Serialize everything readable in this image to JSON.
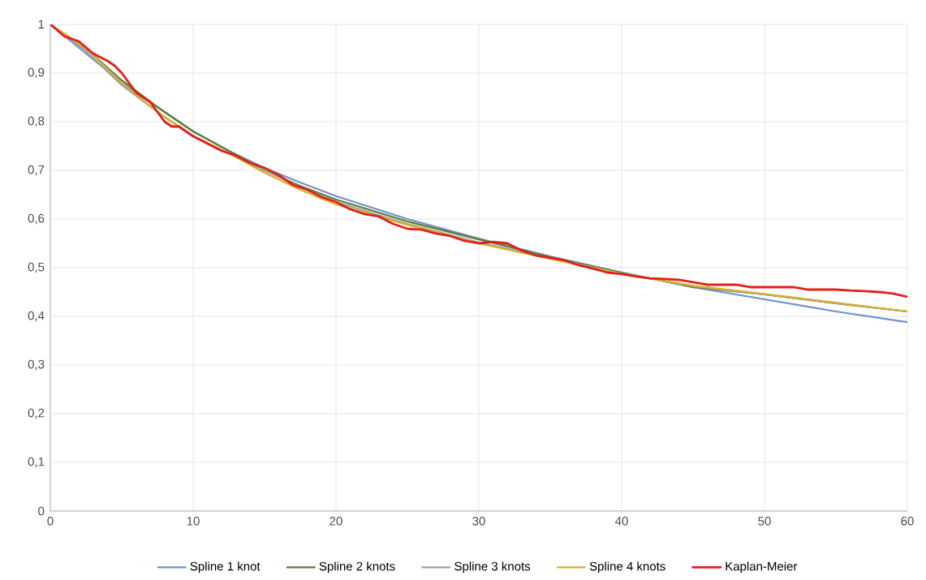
{
  "chart_data": {
    "type": "line",
    "xlim": [
      0,
      60
    ],
    "ylim": [
      0,
      1
    ],
    "xticks": [
      0,
      10,
      20,
      30,
      40,
      50,
      60
    ],
    "yticks": [
      0,
      {
        "value": 0.1,
        "label": "0,1"
      },
      {
        "value": 0.2,
        "label": "0,2"
      },
      {
        "value": 0.3,
        "label": "0,3"
      },
      {
        "value": 0.4,
        "label": "0,4"
      },
      {
        "value": 0.5,
        "label": "0,5"
      },
      {
        "value": 0.6,
        "label": "0,6"
      },
      {
        "value": 0.7,
        "label": "0,7"
      },
      {
        "value": 0.8,
        "label": "0,8"
      },
      {
        "value": 0.9,
        "label": "0,9"
      },
      1
    ],
    "grid": true,
    "legend": "bottom",
    "marker": "none",
    "line_style": "solid",
    "series": [
      {
        "name": "Spline 1 knot",
        "color": "#6f94c9",
        "x": [
          0,
          2.5,
          5,
          7.5,
          10,
          12.5,
          15,
          17.5,
          20,
          25,
          30,
          35,
          40,
          45,
          50,
          55,
          60
        ],
        "values": [
          1,
          0.94,
          0.88,
          0.83,
          0.78,
          0.74,
          0.705,
          0.675,
          0.647,
          0.6,
          0.56,
          0.523,
          0.49,
          0.46,
          0.435,
          0.41,
          0.388
        ]
      },
      {
        "name": "Spline 2 knots",
        "color": "#5e7a3a",
        "x": [
          0,
          2.5,
          5,
          7.5,
          10,
          12.5,
          15,
          17.5,
          20,
          25,
          30,
          35,
          40,
          45,
          50,
          55,
          60
        ],
        "values": [
          1,
          0.95,
          0.885,
          0.83,
          0.78,
          0.74,
          0.7,
          0.668,
          0.64,
          0.595,
          0.558,
          0.522,
          0.49,
          0.46,
          0.445,
          0.427,
          0.41
        ]
      },
      {
        "name": "Spline 3 knots",
        "color": "#a0a0a0",
        "x": [
          0,
          2.5,
          5,
          7.5,
          10,
          12.5,
          15,
          17.5,
          20,
          25,
          30,
          35,
          40,
          45,
          50,
          55,
          60
        ],
        "values": [
          1,
          0.945,
          0.875,
          0.82,
          0.77,
          0.735,
          0.7,
          0.665,
          0.635,
          0.59,
          0.552,
          0.52,
          0.488,
          0.462,
          0.445,
          0.427,
          0.41
        ]
      },
      {
        "name": "Spline 4 knots",
        "color": "#d9b02a",
        "x": [
          0,
          2.5,
          5,
          7.5,
          10,
          12.5,
          15,
          17.5,
          20,
          25,
          30,
          35,
          40,
          45,
          50,
          55,
          60
        ],
        "values": [
          1,
          0.95,
          0.88,
          0.82,
          0.77,
          0.735,
          0.695,
          0.66,
          0.63,
          0.588,
          0.55,
          0.518,
          0.487,
          0.463,
          0.446,
          0.428,
          0.41
        ]
      },
      {
        "name": "Kaplan-Meier",
        "color": "#e0201b",
        "x": [
          0,
          1,
          2,
          3,
          4,
          4.5,
          5,
          6,
          7,
          8,
          8.5,
          9,
          10,
          11,
          12,
          13,
          14,
          15,
          16,
          17,
          18,
          19,
          20,
          21,
          22,
          23,
          24,
          25,
          26,
          27,
          28,
          29,
          30,
          31,
          32,
          33,
          34,
          35,
          36,
          37,
          38,
          39,
          40,
          41,
          42,
          43,
          44,
          45,
          46,
          47,
          48,
          49,
          50,
          51,
          52,
          53,
          54,
          55,
          56,
          57,
          58,
          59,
          60
        ],
        "values": [
          1,
          0.975,
          0.965,
          0.94,
          0.925,
          0.915,
          0.9,
          0.86,
          0.84,
          0.8,
          0.79,
          0.79,
          0.77,
          0.755,
          0.74,
          0.73,
          0.715,
          0.705,
          0.69,
          0.67,
          0.66,
          0.645,
          0.635,
          0.62,
          0.61,
          0.605,
          0.59,
          0.58,
          0.578,
          0.57,
          0.565,
          0.555,
          0.55,
          0.553,
          0.55,
          0.535,
          0.525,
          0.52,
          0.515,
          0.505,
          0.498,
          0.49,
          0.487,
          0.482,
          0.478,
          0.477,
          0.475,
          0.47,
          0.465,
          0.465,
          0.465,
          0.46,
          0.46,
          0.46,
          0.46,
          0.455,
          0.455,
          0.455,
          0.453,
          0.452,
          0.45,
          0.447,
          0.44
        ]
      }
    ]
  }
}
